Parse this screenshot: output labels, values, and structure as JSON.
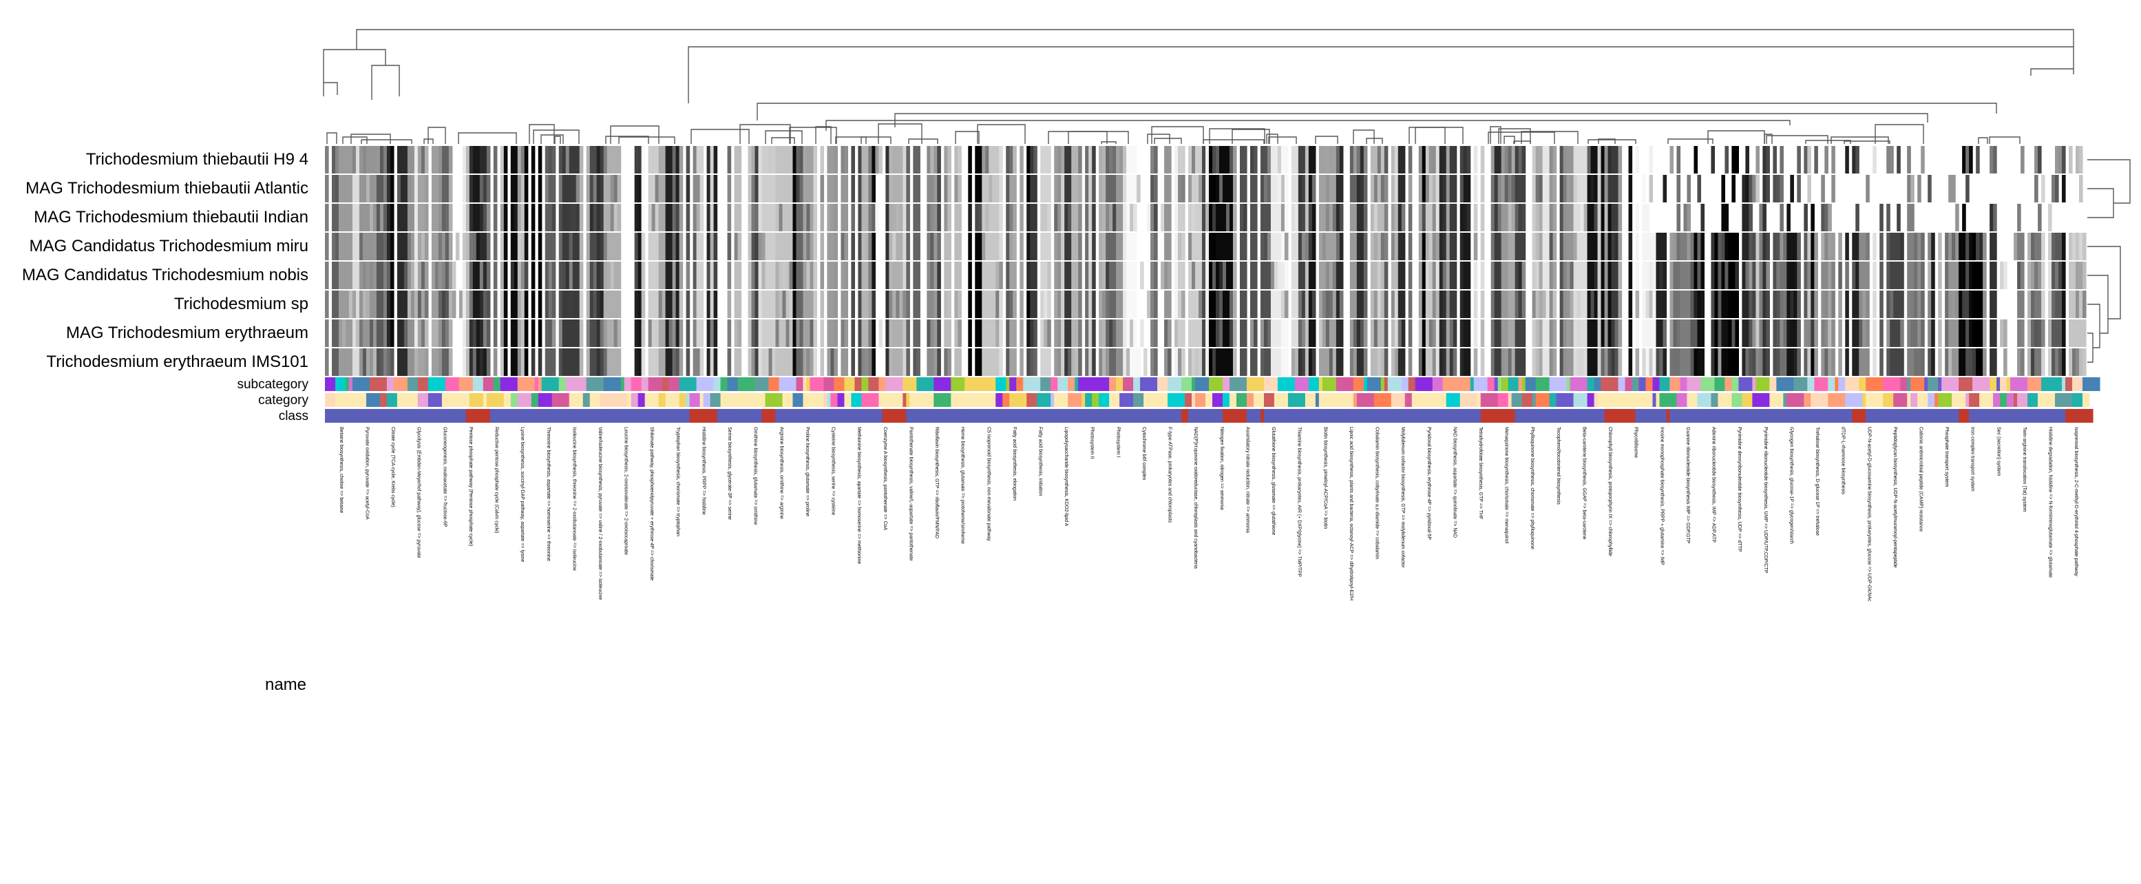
{
  "chart_data": {
    "type": "heatmap",
    "title": "",
    "xlabel": "name",
    "ylabel": "",
    "rows": [
      "Trichodesmium thiebautii H9 4",
      "MAG Trichodesmium thiebautii Atlantic",
      "MAG Trichodesmium thiebautii Indian",
      "MAG Candidatus Trichodesmium miru",
      "MAG Candidatus Trichodesmium nobis",
      "Trichodesmium sp",
      "MAG Trichodesmium erythraeum",
      "Trichodesmium erythraeum IMS101"
    ],
    "annotation_rows": [
      "subcategory",
      "category",
      "class"
    ],
    "colormap": [
      "#ffffff",
      "#000000"
    ],
    "value_range": [
      0,
      1
    ],
    "row_dendrogram": true,
    "column_dendrogram": true,
    "column_labels": [
      "Betaine biosynthesis, choline => betaine",
      "Pyruvate oxidation, pyruvate => acetyl-CoA",
      "Citrate cycle (TCA cycle, Krebs cycle)",
      "Glycolysis (Embden-Meyerhof pathway), glucose => pyruvate",
      "Gluconeogenesis, oxaloacetate => fructose-6P",
      "Pentose phosphate pathway (Pentose phosphate cycle)",
      "Reductive pentose phosphate cycle (Calvin cycle)",
      "Lysine biosynthesis, succinyl-DAP pathway, aspartate => lysine",
      "Threonine biosynthesis, aspartate => homoserine => threonine",
      "Isoleucine biosynthesis, threonine => 2-oxobutanoate => isoleucine",
      "Valine/isoleucine biosynthesis, pyruvate => valine / 2-oxobutanoate => isoleucine",
      "Leucine biosynthesis, 2-oxoisovalerate => 2-oxoisocaproate",
      "Shikimate pathway, phosphoenolpyruvate + erythrose-4P => chorismate",
      "Tryptophan biosynthesis, chorismate => tryptophan",
      "Histidine biosynthesis, PRPP => histidine",
      "Serine biosynthesis, glycerate-3P => serine",
      "Ornithine biosynthesis, glutamate => ornithine",
      "Arginine biosynthesis, ornithine => arginine",
      "Proline biosynthesis, glutamate => proline",
      "Cysteine biosynthesis, serine => cysteine",
      "Methionine biosynthesis, apartate => homoserine => methionine",
      "Coenzyme A biosynthesis, pantothenate => CoA",
      "Pantothenate biosynthesis, valine/L-aspartate => pantothenate",
      "Riboflavin biosynthesis, GTP => riboflavin/FMN/FAD",
      "Heme biosynthesis, glutamate => protoheme/siroheme",
      "C5 isoprenoid biosynthesis, non-mevalonate pathway",
      "Fatty acid biosynthesis, elongation",
      "Fatty acid biosynthesis, initiation",
      "Lipopolysaccharide biosynthesis, KDO2-lipid A",
      "Photosystem II",
      "Photosystem I",
      "Cytochrome b6f complex",
      "F-type ATPase, prokaryotes and chloroplasts",
      "NAD(P)H:quinone oxidoreductase, chloroplasts and cyanobacteria",
      "Nitrogen fixation, nitrogen => ammonia",
      "Assimilatory nitrate reduction, nitrate => ammonia",
      "Glutathione biosynthesis, glutamate => glutathione",
      "Thiamine biosynthesis, prokaryotes, AIR (+ DXP/glycine) => TMP/TPP",
      "Biotin biosynthesis, pimeloyl-ACP/CoA => biotin",
      "Lipoic acid biosynthesis, plants and bacteria, octanoyl-ACP => dihydrolipoyl-E2/H",
      "Cobalamin biosynthesis, cobyrinate a,c-diamide => cobalamin",
      "Molybdenum cofactor biosynthesis, GTP => molybdenum cofactor",
      "Pyridoxal biosynthesis, erythrose-4P => pyridoxal-5P",
      "NAD biosynthesis, aspartate => quinolinate => NAD",
      "Tetrahydrofolate biosynthesis, GTP => THF",
      "Menaquinone biosynthesis, chorismate => menaquinol",
      "Phylloquinone biosynthesis, chorismate => phylloquinone",
      "Tocopherol/tocotorienol biosynthesis",
      "Beta-carotene biosynthesis, GGAP => beta-carotene",
      "Chlorophyll biosynthesis, protoporphyrin IX => chlorophyllide",
      "Phycobilisome",
      "Inosine monophosphate biosynthesis, PRPP + glutamine => IMP",
      "Guanine ribonucleotide biosynthesis IMP => GDP,GTP",
      "Adenine ribonucleotide biosynthesis, IMP => ADP,ATP",
      "Pyrimidine deoxyribonuleotide biosynthesis, UDP => dTTP",
      "Pyrimidine ribonucleotide biosynthesis, UMP => UDP/UTP,CDP/CTP",
      "Glycogen biosynthesis, glucose-1P => glycogen/starch",
      "Trehalose biosynthesis, D-glucose 1P => trehalose",
      "dTDP-L-rhamnose biosynthesis",
      "UDP-N-acetyl-D-glucosamine biosynthesis, prokaryotes, glucose => UDP-GlcNAc",
      "Peptidoglycan biosynthesis, UDP-N-acetylmuramoyl-pentapeptide",
      "Cationic antimicrobial peptide (CAMP) resistance",
      "Phosphate transport system",
      "Iron complex transport system",
      "Sec (secretion) system",
      "Twin-arginine translocation (Tat) system",
      "Histidine degradation, histidine => N-formiminoglutamate => glutamate",
      "Isoprenoid biosynthesis, 2-C-methyl-D-erythritol 4-phosphate pathway"
    ]
  }
}
